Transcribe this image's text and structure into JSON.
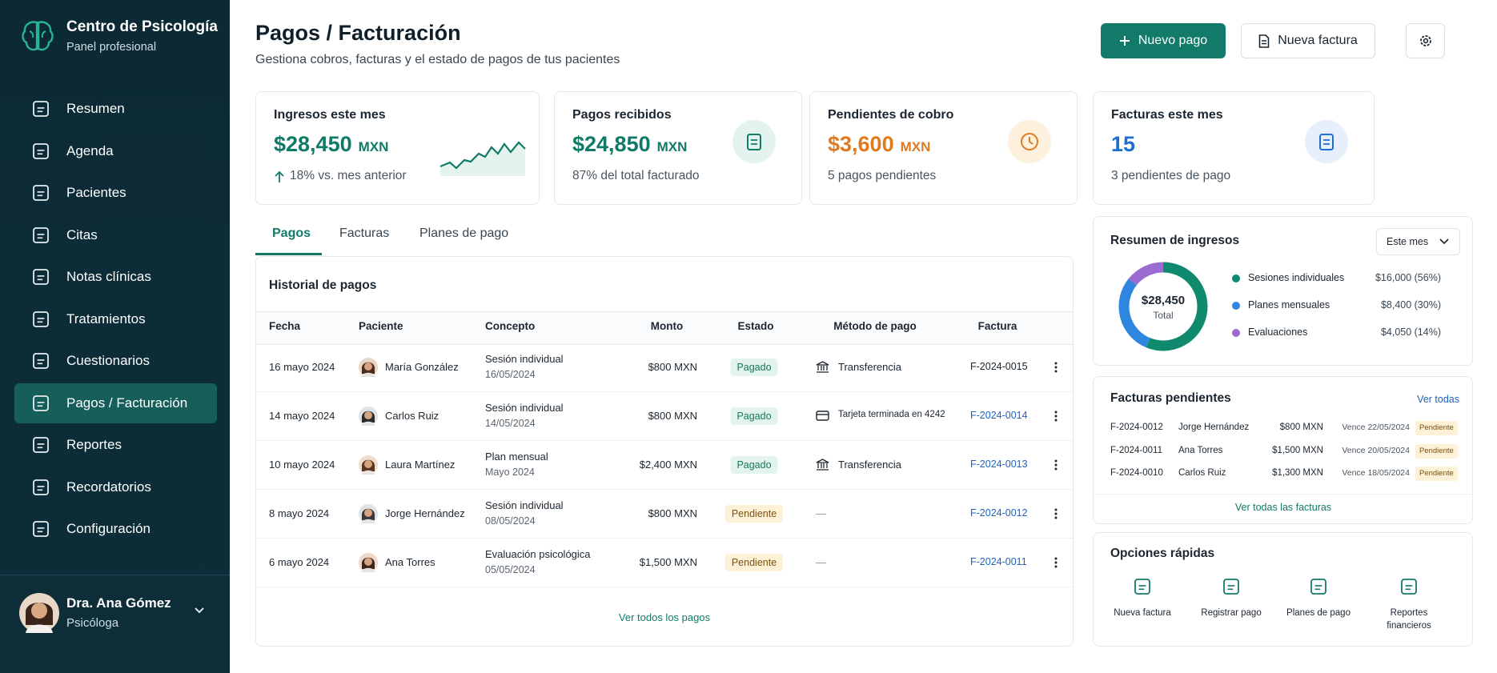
{
  "sidebar": {
    "brand": {
      "title": "Centro de Psicología",
      "subtitle": "Panel profesional"
    },
    "nav": [
      "Resumen",
      "Agenda",
      "Pacientes",
      "Citas",
      "Notas clínicas",
      "Tratamientos",
      "Cuestionarios",
      "Pagos / Facturación",
      "Reportes",
      "Recordatorios",
      "Configuración"
    ],
    "active_nav": 7,
    "user": {
      "name": "Dra. Ana Gómez",
      "role": "Psicóloga"
    }
  },
  "header": {
    "title": "Pagos / Facturación",
    "subtitle": "Gestiona cobros, facturas y el estado de pagos de tus pacientes",
    "actions": [
      "Nuevo pago",
      "Nueva factura"
    ]
  },
  "stats": [
    {
      "title": "Ingresos este mes",
      "value": "$28,450",
      "unit": "MXN",
      "note": "18% vs. mes anterior",
      "color": "#0f7a66"
    },
    {
      "title": "Pagos recibidos",
      "value": "$24,850",
      "unit": "MXN",
      "note": "87% del total facturado",
      "color": "#0f7a66"
    },
    {
      "title": "Pendientes de cobro",
      "value": "$3,600",
      "unit": "MXN",
      "note": "5 pagos pendientes",
      "color": "#e07a1f"
    },
    {
      "title": "Facturas este mes",
      "value": "15",
      "note": "3 pendientes de pago",
      "color": "#1d6fd1"
    }
  ],
  "tabs": {
    "items": [
      "Pagos",
      "Facturas",
      "Planes de pago"
    ],
    "active": 0
  },
  "payments": {
    "title": "Historial de pagos",
    "columns": [
      "Fecha",
      "Paciente",
      "Concepto",
      "Monto",
      "Estado",
      "Método de pago",
      "Factura"
    ],
    "rows": [
      {
        "date": "16 mayo 2024",
        "patient": "María González",
        "concept": "Sesión individual",
        "concept_date": "16/05/2024",
        "amount": "$800 MXN",
        "status": "Pagado",
        "method": "Transferencia",
        "invoice": "F-2024-0015"
      },
      {
        "date": "14 mayo 2024",
        "patient": "Carlos Ruiz",
        "concept": "Sesión individual",
        "concept_date": "14/05/2024",
        "amount": "$800 MXN",
        "status": "Pagado",
        "method": "Tarjeta terminada en 4242",
        "invoice": "F-2024-0014"
      },
      {
        "date": "10 mayo 2024",
        "patient": "Laura Martínez",
        "concept": "Plan mensual",
        "concept_date": "Mayo 2024",
        "amount": "$2,400 MXN",
        "status": "Pagado",
        "method": "Transferencia",
        "invoice": "F-2024-0013"
      },
      {
        "date": "8 mayo 2024",
        "patient": "Jorge Hernández",
        "concept": "Sesión individual",
        "concept_date": "08/05/2024",
        "amount": "$800 MXN",
        "status": "Pendiente",
        "method": "—",
        "invoice": "F-2024-0012"
      },
      {
        "date": "6 mayo 2024",
        "patient": "Ana Torres",
        "concept": "Evaluación psicológica",
        "concept_date": "05/05/2024",
        "amount": "$1,500 MXN",
        "status": "Pendiente",
        "method": "—",
        "invoice": "F-2024-0011"
      }
    ],
    "footer": "Ver todos los pagos"
  },
  "income_summary": {
    "title": "Resumen de ingresos",
    "period": "Este mes",
    "total": "$28,450",
    "total_label": "Total",
    "items": [
      {
        "name": "Sesiones individuales",
        "value": 16000,
        "value_label": "$16,000 (56%)",
        "color": "#0f8a6e"
      },
      {
        "name": "Planes mensuales",
        "value": 8400,
        "value_label": "$8,400 (30%)",
        "color": "#2e86de"
      },
      {
        "name": "Evaluaciones",
        "value": 4050,
        "value_label": "$4,050 (14%)",
        "color": "#9b6bd0"
      }
    ]
  },
  "pending_invoices": {
    "title": "Facturas pendientes",
    "link": "Ver todas",
    "rows": [
      [
        "F-2024-0012",
        "Jorge Hernández",
        "$800 MXN",
        "Vence 22/05/2024",
        "Pendiente"
      ],
      [
        "F-2024-0011",
        "Ana Torres",
        "$1,500 MXN",
        "Vence 20/05/2024",
        "Pendiente"
      ],
      [
        "F-2024-0010",
        "Carlos Ruiz",
        "$1,300 MXN",
        "Vence 18/05/2024",
        "Pendiente"
      ]
    ],
    "footer": "Ver todas las facturas"
  },
  "quick_options": {
    "title": "Opciones rápidas",
    "items": [
      "Nueva factura",
      "Registrar pago",
      "Planes de pago",
      "Reportes financieros"
    ]
  }
}
